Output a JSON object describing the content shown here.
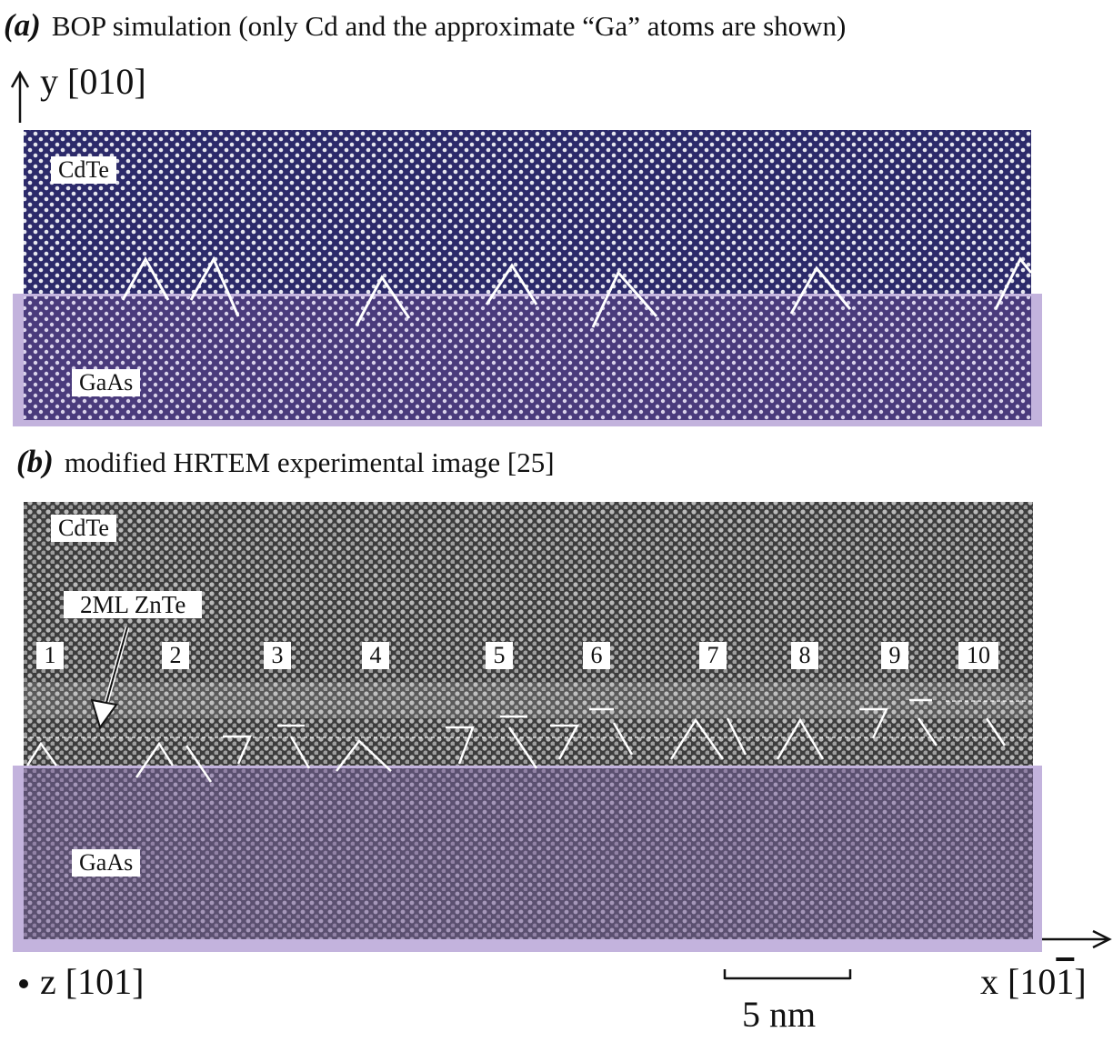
{
  "panel_a": {
    "tag": "(a)",
    "caption": "BOP simulation (only Cd and the approximate “Ga” atoms are shown)",
    "top_label": "CdTe",
    "bottom_label": "GaAs"
  },
  "panel_b": {
    "tag": "(b)",
    "caption": "modified HRTEM experimental image [25]",
    "top_label": "CdTe",
    "zinc_layer_label": "2ML ZnTe",
    "bottom_label": "GaAs",
    "dislocation_numbers": [
      "1",
      "2",
      "3",
      "4",
      "5",
      "6",
      "7",
      "8",
      "9",
      "10"
    ]
  },
  "axes": {
    "y_label": "y [010]",
    "z_label": "z [101]",
    "x_label_prefix": "x [10",
    "x_label_bar": "1",
    "x_label_suffix": "]"
  },
  "scale_bar": {
    "label": "5 nm",
    "length_nm": 5
  },
  "colors": {
    "sim_cdte": "#2c2a6a",
    "sim_gaas": "#4a3b7c",
    "gaas_frame": "#c3b3dd",
    "atom": "#e8e8ef",
    "hrtem_bg": "#3a3a3a",
    "hrtem_gaas_tint": "#7a6a9a"
  }
}
